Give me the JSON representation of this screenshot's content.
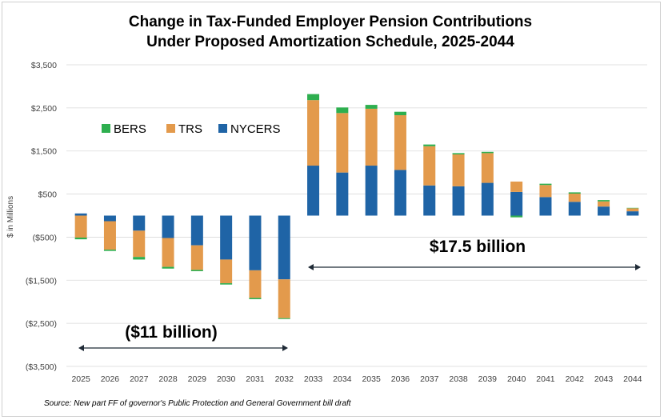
{
  "chart_data": {
    "type": "bar",
    "stacked": true,
    "title_lines": [
      "Change in Tax-Funded Employer Pension Contributions",
      "Under Proposed Amortization Schedule, 2025-2044"
    ],
    "ylabel": "$ in Millions",
    "xlabel": "",
    "ylim": [
      -3500,
      3500
    ],
    "yticks": [
      3500,
      2500,
      1500,
      500,
      -500,
      -1500,
      -2500,
      -3500
    ],
    "ytick_labels": [
      "$3,500",
      "$2,500",
      "$1,500",
      "$500",
      "($500)",
      "($1,500)",
      "($2,500)",
      "($3,500)"
    ],
    "grid": true,
    "legend_position": "upper-left",
    "categories": [
      "2025",
      "2026",
      "2027",
      "2028",
      "2029",
      "2030",
      "2031",
      "2032",
      "2033",
      "2034",
      "2035",
      "2036",
      "2037",
      "2038",
      "2039",
      "2040",
      "2041",
      "2042",
      "2043",
      "2044"
    ],
    "series": [
      {
        "name": "NYCERS",
        "color": "#1f64a6",
        "values": [
          50,
          -130,
          -350,
          -520,
          -690,
          -1020,
          -1270,
          -1480,
          1160,
          1000,
          1160,
          1060,
          700,
          680,
          760,
          550,
          430,
          320,
          210,
          100
        ]
      },
      {
        "name": "TRS",
        "color": "#e39a4c",
        "values": [
          -510,
          -660,
          -610,
          -670,
          -570,
          -550,
          -640,
          -900,
          1520,
          1380,
          1320,
          1270,
          910,
          740,
          690,
          240,
          280,
          190,
          120,
          70
        ]
      },
      {
        "name": "BERS",
        "color": "#2eaf4f",
        "values": [
          -40,
          -30,
          -60,
          -40,
          -30,
          -30,
          -30,
          -20,
          140,
          130,
          90,
          80,
          40,
          30,
          30,
          -40,
          30,
          30,
          30,
          10
        ]
      }
    ],
    "legend_order": [
      "BERS",
      "TRS",
      "NYCERS"
    ],
    "annotations": [
      {
        "text": "($11 billion)",
        "from": "2025",
        "to": "2032"
      },
      {
        "text": "$17.5 billion",
        "from": "2033",
        "to": "2044"
      }
    ],
    "source_note": "Source: New part FF of governor's Public Protection and General Government bill draft"
  },
  "colors": {
    "grid": "#d9d9d9",
    "axis_text": "#404040",
    "arrow": "#1f2a36"
  }
}
